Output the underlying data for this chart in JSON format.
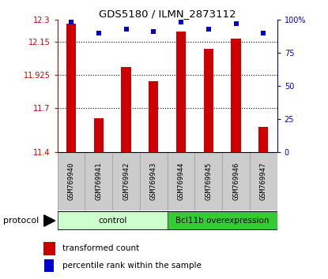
{
  "title": "GDS5180 / ILMN_2873112",
  "samples": [
    "GSM769940",
    "GSM769941",
    "GSM769942",
    "GSM769943",
    "GSM769944",
    "GSM769945",
    "GSM769946",
    "GSM769947"
  ],
  "transformed_counts": [
    12.27,
    11.63,
    11.98,
    11.88,
    12.22,
    12.1,
    12.17,
    11.57
  ],
  "percentile_ranks": [
    98,
    90,
    93,
    91,
    98,
    93,
    97,
    90
  ],
  "ylim_left": [
    11.4,
    12.3
  ],
  "ylim_right": [
    0,
    100
  ],
  "yticks_left": [
    11.4,
    11.7,
    11.925,
    12.15,
    12.3
  ],
  "ytick_labels_left": [
    "11.4",
    "11.7",
    "11.925",
    "12.15",
    "12.3"
  ],
  "yticks_right": [
    0,
    25,
    50,
    75,
    100
  ],
  "ytick_labels_right": [
    "0",
    "25",
    "50",
    "75",
    "100%"
  ],
  "bar_color": "#cc0000",
  "dot_color": "#0000cc",
  "groups": [
    {
      "label": "control",
      "indices": [
        0,
        1,
        2,
        3
      ],
      "color": "#ccffcc"
    },
    {
      "label": "Bcl11b overexpression",
      "indices": [
        4,
        5,
        6,
        7
      ],
      "color": "#33cc33"
    }
  ],
  "protocol_label": "protocol",
  "legend_bar_label": "transformed count",
  "legend_dot_label": "percentile rank within the sample",
  "axis_left_color": "#cc0000",
  "axis_right_color": "#0000cc",
  "label_box_color": "#cccccc",
  "label_box_edge_color": "#aaaaaa"
}
